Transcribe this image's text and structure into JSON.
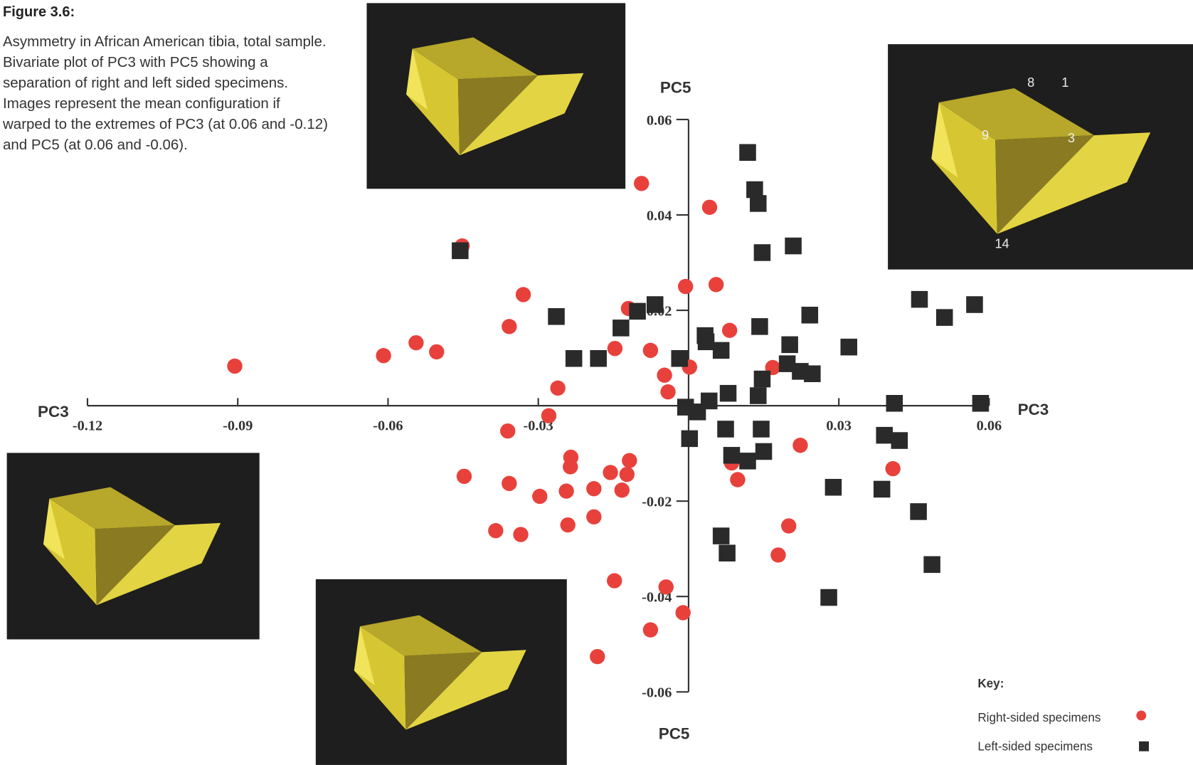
{
  "chart_data": {
    "type": "scatter",
    "title": "Figure 3.6:",
    "caption": "Asymmetry in African American tibia, total sample. Bivariate plot of PC3 with PC5 showing a separation of right and left sided specimens. Images represent the mean configuration if warped to the extremes of PC3 (at 0.06 and -0.12) and PC5 (at 0.06 and -0.06).",
    "x_label": "PC3",
    "y_label": "PC5",
    "xlim": [
      -0.12,
      0.06
    ],
    "ylim": [
      -0.06,
      0.06
    ],
    "xticks": [
      -0.12,
      -0.09,
      -0.06,
      -0.03,
      0.03,
      0.06
    ],
    "yticks": [
      -0.06,
      -0.04,
      -0.02,
      0.02,
      0.04,
      0.06
    ],
    "legend_title": "Key:",
    "legend_position": "lower right",
    "annotations": [
      "8",
      "1",
      "9",
      "3",
      "14"
    ],
    "series": [
      {
        "name": "Right-sided specimens",
        "color": "#e8413c",
        "marker": "circle",
        "x": [
          -0.0094,
          0.0042,
          -0.0452,
          -0.0006,
          0.0055,
          -0.033,
          -0.012,
          -0.0358,
          0.0082,
          -0.0544,
          -0.0609,
          -0.0503,
          -0.0147,
          -0.0076,
          -0.0906,
          0.0002,
          -0.0048,
          0.0168,
          -0.0261,
          -0.0041,
          -0.0279,
          -0.0361,
          0.0223,
          -0.0235,
          -0.0236,
          -0.0118,
          0.0086,
          -0.0448,
          -0.0156,
          -0.0123,
          0.0098,
          0.0408,
          -0.0358,
          -0.0244,
          -0.0189,
          -0.0133,
          -0.0297,
          -0.0385,
          -0.0335,
          -0.0241,
          -0.0189,
          0.02,
          0.0179,
          -0.0148,
          -0.0045,
          -0.0011,
          -0.0076,
          -0.0182
        ],
        "y": [
          0.0466,
          0.0416,
          0.0335,
          0.025,
          0.0254,
          0.0233,
          0.0204,
          0.0166,
          0.0158,
          0.0132,
          0.0105,
          0.0113,
          0.012,
          0.0116,
          0.0083,
          0.0081,
          0.0064,
          0.008,
          0.0037,
          0.0029,
          -0.0021,
          -0.0053,
          -0.0083,
          -0.0108,
          -0.0128,
          -0.0115,
          -0.012,
          -0.0148,
          -0.014,
          -0.0144,
          -0.0155,
          -0.0132,
          -0.0163,
          -0.0179,
          -0.0174,
          -0.0177,
          -0.019,
          -0.0262,
          -0.027,
          -0.025,
          -0.0233,
          -0.0252,
          -0.0313,
          -0.0367,
          -0.038,
          -0.0434,
          -0.047,
          -0.0526
        ]
      },
      {
        "name": "Left-sided specimens",
        "color": "#2a2a2a",
        "marker": "square",
        "x": [
          0.0118,
          0.0132,
          0.0139,
          -0.0456,
          0.0147,
          0.0209,
          0.0461,
          0.0511,
          0.0571,
          -0.0264,
          -0.0067,
          -0.0102,
          -0.0135,
          0.0242,
          0.0033,
          0.0035,
          0.0142,
          0.0202,
          0.0065,
          0.032,
          -0.0229,
          -0.018,
          -0.0018,
          0.0197,
          0.0223,
          0.0247,
          0.0147,
          0.0079,
          0.0139,
          0.0041,
          -0.0006,
          0.0018,
          0.0411,
          0.0583,
          0.0074,
          0.0145,
          0.0002,
          0.0391,
          0.0421,
          0.0086,
          0.0118,
          0.015,
          0.0289,
          0.0386,
          0.0459,
          0.0065,
          0.0077,
          0.0486,
          0.028
        ],
        "y": [
          0.0531,
          0.0453,
          0.0424,
          0.0325,
          0.0321,
          0.0335,
          0.0223,
          0.0185,
          0.0212,
          0.0187,
          0.0212,
          0.0198,
          0.0163,
          0.019,
          0.0147,
          0.0134,
          0.0166,
          0.0128,
          0.0116,
          0.0123,
          0.0099,
          0.0099,
          0.0099,
          0.0088,
          0.0072,
          0.0067,
          0.0056,
          0.0026,
          0.0021,
          0.001,
          -0.0003,
          -0.0013,
          0.0005,
          0.0005,
          -0.0049,
          -0.0049,
          -0.0069,
          -0.0062,
          -0.0073,
          -0.0104,
          -0.0116,
          -0.0096,
          -0.0171,
          -0.0175,
          -0.0222,
          -0.0273,
          -0.0309,
          -0.0333,
          -0.0402
        ]
      }
    ]
  }
}
